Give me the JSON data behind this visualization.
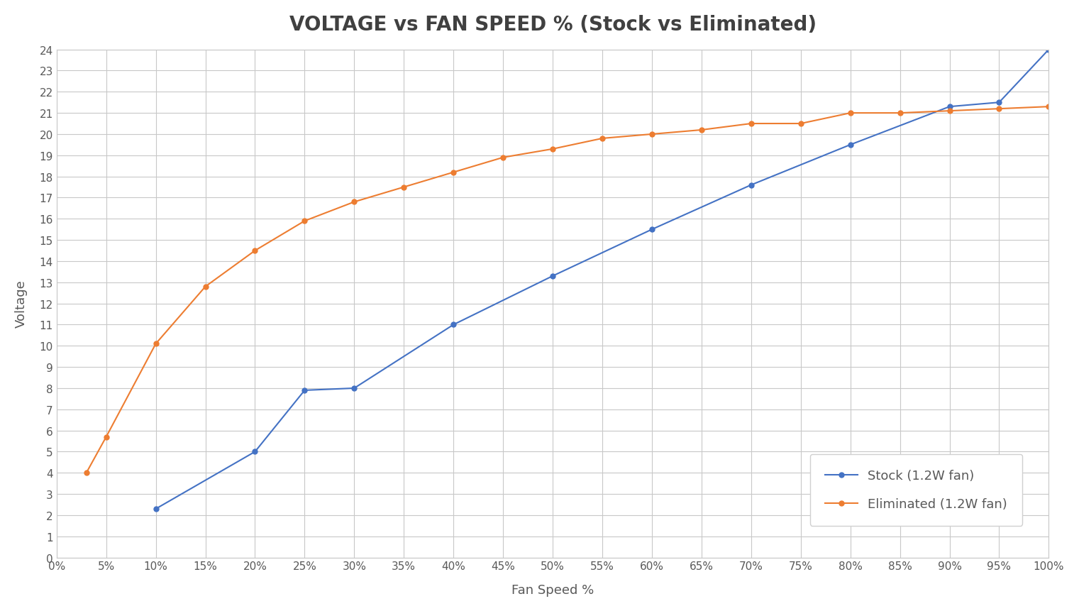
{
  "title": "VOLTAGE vs FAN SPEED % (Stock vs Eliminated)",
  "xlabel": "Fan Speed %",
  "ylabel": "Voltage",
  "background_color": "#ffffff",
  "plot_background_color": "#ffffff",
  "grid_color": "#c8c8c8",
  "title_fontsize": 20,
  "label_fontsize": 13,
  "tick_fontsize": 11,
  "legend_fontsize": 13,
  "ylim": [
    0,
    24
  ],
  "yticks": [
    0,
    1,
    2,
    3,
    4,
    5,
    6,
    7,
    8,
    9,
    10,
    11,
    12,
    13,
    14,
    15,
    16,
    17,
    18,
    19,
    20,
    21,
    22,
    23,
    24
  ],
  "x_percent": [
    0,
    5,
    10,
    15,
    20,
    25,
    30,
    35,
    40,
    45,
    50,
    55,
    60,
    65,
    70,
    75,
    80,
    85,
    90,
    95,
    100
  ],
  "stock": {
    "label": "Stock (1.2W fan)",
    "color": "#4472C4",
    "x": [
      10,
      20,
      25,
      30,
      40,
      50,
      60,
      70,
      80,
      90,
      95,
      100
    ],
    "y": [
      2.3,
      5.0,
      7.9,
      8.0,
      11.0,
      13.3,
      15.5,
      17.6,
      19.5,
      21.3,
      21.5,
      24.0
    ]
  },
  "eliminated": {
    "label": "Eliminated (1.2W fan)",
    "color": "#ED7D31",
    "x": [
      3,
      5,
      10,
      15,
      20,
      25,
      30,
      35,
      40,
      45,
      50,
      55,
      60,
      65,
      70,
      75,
      80,
      85,
      90,
      95,
      100
    ],
    "y": [
      4.0,
      5.7,
      10.1,
      12.8,
      14.5,
      15.9,
      16.8,
      17.5,
      18.2,
      18.9,
      19.3,
      19.8,
      20.0,
      20.2,
      20.5,
      20.5,
      21.0,
      21.0,
      21.1,
      21.2,
      21.3
    ]
  }
}
